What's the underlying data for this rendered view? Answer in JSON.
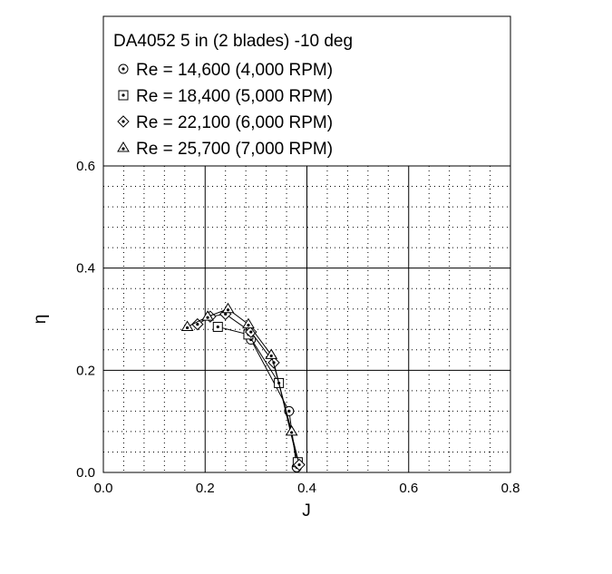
{
  "chart_data": {
    "type": "line",
    "title": "DA4052 5 in (2 blades) -10 deg",
    "xlabel": "J",
    "ylabel": "η",
    "xlim": [
      0.0,
      0.8
    ],
    "ylim": [
      0.0,
      0.6
    ],
    "xticks": [
      "0.0",
      "0.2",
      "0.4",
      "0.6",
      "0.8"
    ],
    "yticks": [
      "0.0",
      "0.2",
      "0.4",
      "0.6"
    ],
    "grid": "major solid, minor dotted",
    "legend_position": "top",
    "series": [
      {
        "name": "Re = 14,600 (4,000 RPM)",
        "marker": "circle-dot",
        "x": [
          0.29,
          0.365,
          0.38
        ],
        "y": [
          0.26,
          0.12,
          0.01
        ]
      },
      {
        "name": "Re = 18,400 (5,000 RPM)",
        "marker": "square-dot",
        "x": [
          0.225,
          0.285,
          0.345,
          0.382
        ],
        "y": [
          0.285,
          0.27,
          0.175,
          0.02
        ]
      },
      {
        "name": "Re = 22,100 (6,000 RPM)",
        "marker": "diamond-dot",
        "x": [
          0.185,
          0.21,
          0.24,
          0.29,
          0.335,
          0.385
        ],
        "y": [
          0.29,
          0.305,
          0.31,
          0.275,
          0.215,
          0.015
        ]
      },
      {
        "name": "Re = 25,700 (7,000 RPM)",
        "marker": "triangle-dot",
        "x": [
          0.165,
          0.205,
          0.245,
          0.285,
          0.33,
          0.37
        ],
        "y": [
          0.285,
          0.305,
          0.32,
          0.29,
          0.23,
          0.08
        ]
      }
    ]
  }
}
